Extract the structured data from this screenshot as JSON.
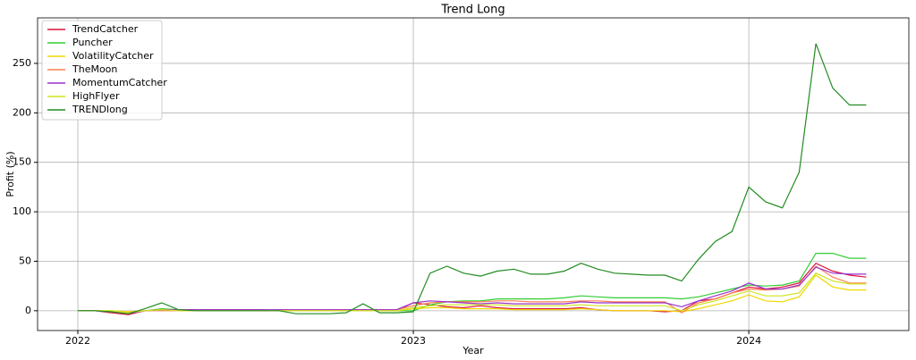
{
  "chart_data": {
    "type": "line",
    "title": "Trend Long",
    "x_label": "Year",
    "y_label": "Profit (%)",
    "x": [
      2022,
      2022.05,
      2022.1,
      2022.15,
      2022.2,
      2022.25,
      2022.3,
      2022.35,
      2022.4,
      2022.45,
      2022.5,
      2022.55,
      2022.6,
      2022.65,
      2022.7,
      2022.75,
      2022.8,
      2022.85,
      2022.9,
      2022.95,
      2023,
      2023.05,
      2023.1,
      2023.15,
      2023.2,
      2023.25,
      2023.3,
      2023.35,
      2023.4,
      2023.45,
      2023.5,
      2023.55,
      2023.6,
      2023.65,
      2023.7,
      2023.75,
      2023.8,
      2023.85,
      2023.9,
      2023.95,
      2024,
      2024.05,
      2024.1,
      2024.15,
      2024.2,
      2024.25,
      2024.3,
      2024.35
    ],
    "series": [
      {
        "name": "TrendCatcher",
        "color": "#dc143c",
        "values": [
          0,
          0,
          -2,
          -4,
          0,
          1,
          1,
          1,
          1,
          1,
          1,
          1,
          0,
          0,
          0,
          0,
          0,
          1,
          0,
          0,
          8,
          6,
          4,
          3,
          5,
          3,
          2,
          2,
          2,
          2,
          3,
          1,
          0,
          0,
          0,
          -1,
          0,
          10,
          12,
          18,
          24,
          22,
          24,
          28,
          48,
          40,
          36,
          34
        ]
      },
      {
        "name": "Puncher",
        "color": "#32cd32",
        "values": [
          0,
          0,
          -1,
          -2,
          0,
          2,
          1,
          0,
          0,
          0,
          0,
          0,
          0,
          0,
          0,
          0,
          0,
          1,
          0,
          0,
          0,
          6,
          9,
          10,
          10,
          12,
          12,
          12,
          12,
          13,
          15,
          14,
          13,
          13,
          13,
          13,
          12,
          14,
          18,
          22,
          26,
          25,
          26,
          30,
          58,
          58,
          53,
          53
        ]
      },
      {
        "name": "VolatilityCatcher",
        "color": "#f0d800",
        "values": [
          0,
          0,
          0,
          -1,
          0,
          1,
          0,
          0,
          0,
          0,
          0,
          0,
          0,
          0,
          0,
          0,
          0,
          0,
          0,
          0,
          2,
          3,
          3,
          2,
          2,
          2,
          1,
          1,
          1,
          1,
          2,
          1,
          0,
          0,
          0,
          0,
          -1,
          2,
          6,
          10,
          16,
          10,
          9,
          14,
          36,
          24,
          21,
          21
        ]
      },
      {
        "name": "TheMoon",
        "color": "#ff7f50",
        "values": [
          0,
          0,
          -1,
          -2,
          0,
          0,
          0,
          0,
          0,
          0,
          0,
          0,
          1,
          1,
          1,
          1,
          1,
          1,
          1,
          1,
          5,
          8,
          9,
          9,
          9,
          10,
          10,
          9,
          9,
          9,
          10,
          10,
          9,
          9,
          9,
          9,
          -2,
          8,
          12,
          18,
          22,
          21,
          22,
          25,
          45,
          34,
          28,
          28
        ]
      },
      {
        "name": "MomentumCatcher",
        "color": "#9932cc",
        "values": [
          0,
          0,
          -1,
          -3,
          0,
          1,
          1,
          1,
          1,
          1,
          1,
          1,
          1,
          1,
          1,
          1,
          1,
          1,
          1,
          1,
          8,
          10,
          9,
          8,
          7,
          8,
          7,
          7,
          7,
          7,
          9,
          8,
          8,
          8,
          8,
          8,
          4,
          10,
          15,
          20,
          28,
          22,
          22,
          26,
          44,
          38,
          37,
          37
        ]
      },
      {
        "name": "HighFlyer",
        "color": "#cde61e",
        "values": [
          0,
          0,
          0,
          -2,
          0,
          1,
          0,
          0,
          0,
          0,
          0,
          0,
          0,
          0,
          0,
          0,
          0,
          0,
          0,
          0,
          3,
          5,
          6,
          6,
          6,
          6,
          5,
          5,
          5,
          5,
          6,
          5,
          5,
          5,
          5,
          5,
          0,
          6,
          10,
          15,
          20,
          15,
          15,
          18,
          38,
          30,
          27,
          27
        ]
      },
      {
        "name": "TRENDlong",
        "color": "#228b22",
        "values": [
          0,
          0,
          -1,
          -3,
          2,
          8,
          1,
          0,
          0,
          0,
          0,
          0,
          0,
          -3,
          -3,
          -3,
          -2,
          7,
          -2,
          -2,
          -1,
          38,
          45,
          38,
          35,
          40,
          42,
          37,
          37,
          40,
          48,
          42,
          38,
          37,
          36,
          36,
          30,
          52,
          70,
          80,
          125,
          110,
          104,
          140,
          270,
          225,
          208,
          208
        ]
      }
    ],
    "xlim": [
      2021.88,
      2024.477
    ],
    "xticks": [
      2022,
      2023,
      2024
    ],
    "ylim": [
      -20,
      296
    ],
    "yticks": [
      0,
      50,
      100,
      150,
      200,
      250
    ],
    "grid": true,
    "legend": "upper left"
  }
}
